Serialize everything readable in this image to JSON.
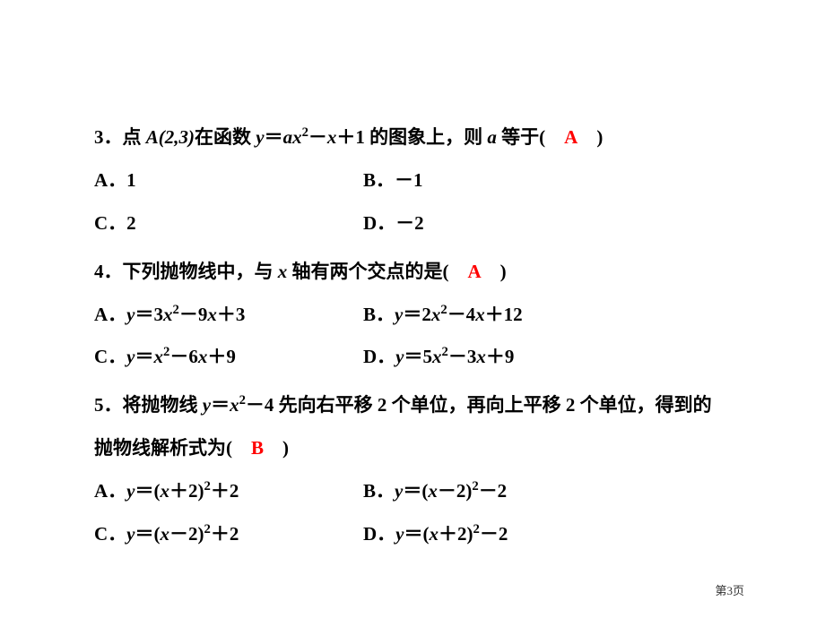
{
  "q3": {
    "prefix": "3．点 ",
    "point": "A(2,3)",
    "mid1": "在函数 ",
    "func_y": "y",
    "eq": "＝",
    "func_a": "ax",
    "exp": "2",
    "func_rest": "－",
    "func_x": "x",
    "func_end": "＋1 的图象上，则 ",
    "var_a": "a",
    "suffix": " 等于(　",
    "answer": "A",
    "close": "　)",
    "optA": "A．1",
    "optB": "B．－1",
    "optC": "C．2",
    "optD": "D．－2"
  },
  "q4": {
    "prefix": "4．下列抛物线中，与 ",
    "var_x": "x",
    "suffix": " 轴有两个交点的是(　",
    "answer": "A",
    "close": "　)",
    "optA_pre": "A．",
    "optA_y": "y",
    "optA_eq": "＝3",
    "optA_x": "x",
    "optA_exp": "2",
    "optA_mid": "－9",
    "optA_x2": "x",
    "optA_end": "＋3",
    "optB_pre": "B．",
    "optB_y": "y",
    "optB_eq": "＝2",
    "optB_x": "x",
    "optB_exp": "2",
    "optB_mid": "－4",
    "optB_x2": "x",
    "optB_end": "＋12",
    "optC_pre": "C．",
    "optC_y": "y",
    "optC_eq": "＝",
    "optC_x": "x",
    "optC_exp": "2",
    "optC_mid": "－6",
    "optC_x2": "x",
    "optC_end": "＋9",
    "optD_pre": "D．",
    "optD_y": "y",
    "optD_eq": "＝5",
    "optD_x": "x",
    "optD_exp": "2",
    "optD_mid": "－3",
    "optD_x2": "x",
    "optD_end": "＋9"
  },
  "q5": {
    "prefix": "5．将抛物线 ",
    "var_y": "y",
    "eq": "＝",
    "var_x": "x",
    "exp": "2",
    "mid": "－4 先向右平移 2 个单位，再向上平移 2 个单位，得到的",
    "line2_pre": "抛物线解析式为(　",
    "answer": "B",
    "close": "　)",
    "optA_pre": "A．",
    "optA_y": "y",
    "optA_eq": "＝(",
    "optA_x": "x",
    "optA_mid": "＋2)",
    "optA_exp": "2",
    "optA_end": "＋2",
    "optB_pre": "B．",
    "optB_y": "y",
    "optB_eq": "＝(",
    "optB_x": "x",
    "optB_mid": "－2)",
    "optB_exp": "2",
    "optB_end": "－2",
    "optC_pre": "C．",
    "optC_y": "y",
    "optC_eq": "＝(",
    "optC_x": "x",
    "optC_mid": "－2)",
    "optC_exp": "2",
    "optC_end": "＋2",
    "optD_pre": "D．",
    "optD_y": "y",
    "optD_eq": "＝(",
    "optD_x": "x",
    "optD_mid": "＋2)",
    "optD_exp": "2",
    "optD_end": "－2"
  },
  "page": "第3页"
}
